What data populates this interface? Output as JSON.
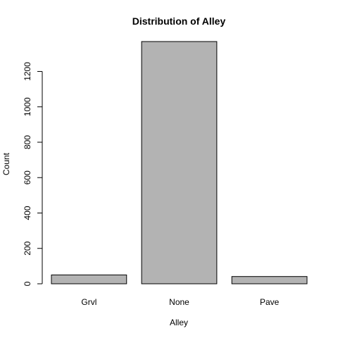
{
  "chart_data": {
    "type": "bar",
    "title": "Distribution of Alley",
    "xlabel": "Alley",
    "ylabel": "Count",
    "categories": [
      "Grvl",
      "None",
      "Pave"
    ],
    "values": [
      50,
      1369,
      41
    ],
    "ylim": [
      0,
      1369
    ],
    "yticks": [
      0,
      200,
      400,
      600,
      800,
      1000,
      1200
    ],
    "bar_color": "#b3b3b3",
    "grid": false
  }
}
